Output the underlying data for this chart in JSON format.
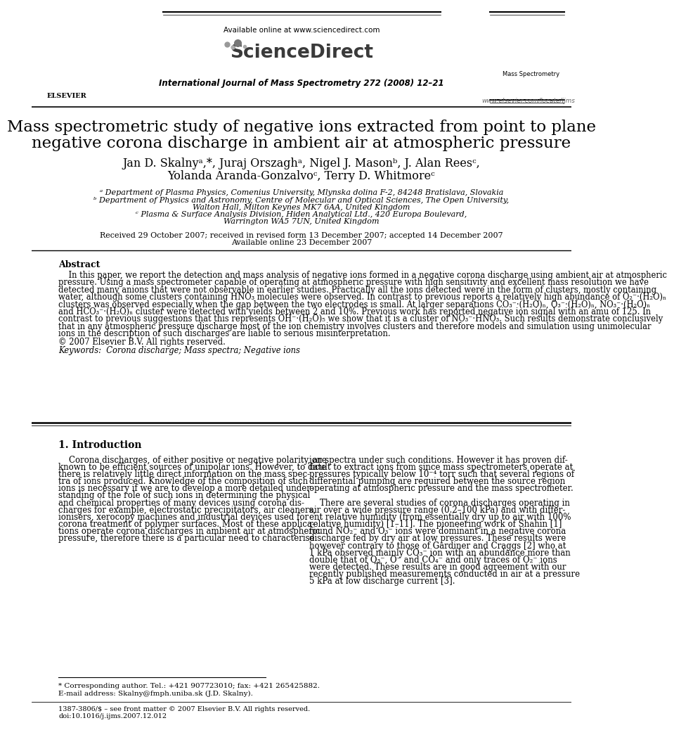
{
  "bg_color": "#ffffff",
  "header_available": "Available online at www.sciencedirect.com",
  "header_journal": "International Journal of Mass Spectrometry 272 (2008) 12–21",
  "header_url": "www.elsevier.com/locate/ijms",
  "sciencedirect_text": "ScienceDirect",
  "title_line1": "Mass spectrometric study of negative ions extracted from point to plane",
  "title_line2": "negative corona discharge in ambient air at atmospheric pressure",
  "affil_a": "ᵃ Department of Plasma Physics, Comenius University, Mlynska dolina F-2, 84248 Bratislava, Slovakia",
  "affil_b": "ᵇ Department of Physics and Astronomy, Centre of Molecular and Optical Sciences, The Open University,",
  "affil_b2": "Walton Hall, Milton Keynes MK7 6AA, United Kingdom",
  "affil_c": "ᶜ Plasma & Surface Analysis Division, Hiden Analytical Ltd., 420 Europa Boulevard,",
  "affil_c2": "Warrington WA5 7UN, United Kingdom",
  "received": "Received 29 October 2007; received in revised form 13 December 2007; accepted 14 December 2007",
  "available": "Available online 23 December 2007",
  "abstract_title": "Abstract",
  "copyright": "© 2007 Elsevier B.V. All rights reserved.",
  "keywords_label": "Keywords:",
  "keywords": "Corona discharge; Mass spectra; Negative ions",
  "section1_title": "1. Introduction",
  "footnote_star": "* Corresponding author. Tel.: +421 907723010; fax: +421 265425882.",
  "footnote_email": "E-mail address: Skalny@fmph.uniba.sk (J.D. Skalny).",
  "footer_issn": "1387-3806/$ – see front matter © 2007 Elsevier B.V. All rights reserved.",
  "footer_doi": "doi:10.1016/j.ijms.2007.12.012",
  "abstract_lines": [
    "    In this paper, we report the detection and mass analysis of negative ions formed in a negative corona discharge using ambient air at atmospheric",
    "pressure. Using a mass spectrometer capable of operating at atmospheric pressure with high sensitivity and excellent mass resolution we have",
    "detected many anions that were not observable in earlier studies. Practically all the ions detected were in the form of clusters, mostly containing",
    "water, although some clusters containing HNO₃ molecules were observed. In contrast to previous reports a relatively high abundance of O₂⁻·(H₂O)ₙ",
    "clusters was observed especially when the gap between the two electrodes is small. At larger separations CO₃⁻·(H₂O)ₙ, O₃⁻·(H₂O)ₙ, NO₃⁻·(H₂O)ₙ",
    "and HCO₃⁻·(H₂O)ₙ cluster were detected with yields between 2 and 10%. Previous work has reported negative ion signal with an amu of 125. In",
    "contrast to previous suggestions that this represents OH⁻·(H₂O)₅ we show that it is a cluster of NO₃⁻·HNO₃. Such results demonstrate conclusively",
    "that in any atmospheric pressure discharge most of the ion chemistry involves clusters and therefore models and simulation using unimolecular",
    "ions in the description of such discharges are liable to serious misinterpretation."
  ],
  "col1_lines": [
    "    Corona discharges, of either positive or negative polarity, are",
    "known to be efficient sources of unipolar ions. However, to date",
    "there is relatively little direct information on the mass spec-",
    "tra of ions produced. Knowledge of the composition of such",
    "ions is necessary if we are to develop a more detailed under-",
    "standing of the role of such ions in determining the physical",
    "and chemical properties of many devices using corona dis-",
    "charges for example, electrostatic precipitators, air cleaners,",
    "ionisers, xerocopy machines and industrial devices used for",
    "corona treatment of polymer surfaces. Most of these applica-",
    "tions operate corona discharges in ambient air at atmospheric",
    "pressure, therefore there is a particular need to characterise"
  ],
  "col2_lines1": [
    "ion spectra under such conditions. However it has proven dif-",
    "ficult to extract ions from since mass spectrometers operate at",
    "pressures typically below 10⁻⁴ torr such that several regions of",
    "differential pumping are required between the source region",
    "operating at atmospheric pressure and the mass spectrometer."
  ],
  "col2_lines2": [
    "    There are several studies of corona discharges operating in",
    "air over a wide pressure range (0.2–100 kPa) and with differ-",
    "ent relative humidity (from essentially dry up to air with 100%",
    "relative humidity) [1–11]. The pioneering work of Shahin [1]",
    "found NO₂⁻ and O₃⁻ ions were dominant in a negative corona",
    "discharge fed by dry air at low pressures. These results were",
    "however contrary to those of Gardiner and Craggs [2] who at",
    "1 kPa observed mainly CO₃⁻ ion with an abundance more than",
    "double that of O₃⁻, O⁻ and CO₄⁻ and only traces of O₂⁻ ions",
    "were detected. These results are in good agreement with our",
    "recently published measurements conducted in air at a pressure",
    "5 kPa at low discharge current [3]."
  ]
}
